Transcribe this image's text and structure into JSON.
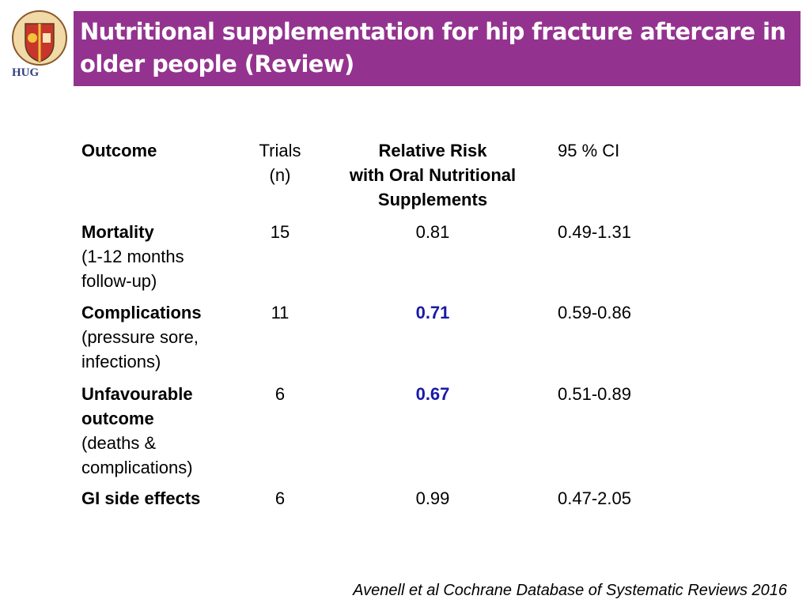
{
  "header": {
    "title": "Nutritional supplementation for hip fracture aftercare in older people (Review)",
    "logo_text": "HUG"
  },
  "table": {
    "columns": [
      [
        "Outcome"
      ],
      [
        "Trials",
        "(n)"
      ],
      [
        "Relative Risk",
        "with Oral Nutritional",
        "Supplements"
      ],
      [
        "95 % CI"
      ]
    ],
    "rows": [
      {
        "outcome": "Mortality",
        "detail": "(1-12 months follow-up)",
        "trials": "15",
        "rr": "0.81",
        "ci": "0.49-1.31",
        "highlight": false
      },
      {
        "outcome": "Complications",
        "detail": "(pressure sore, infections)",
        "trials": "11",
        "rr": "0.71",
        "ci": "0.59-0.86",
        "highlight": true
      },
      {
        "outcome": "Unfavourable outcome",
        "detail": "(deaths & complications)",
        "trials": "6",
        "rr": "0.67",
        "ci": "0.51-0.89",
        "highlight": true
      },
      {
        "outcome": "GI side effects",
        "detail": null,
        "trials": "6",
        "rr": "0.99",
        "ci": "0.47-2.05",
        "highlight": false
      }
    ]
  },
  "footer": {
    "citation": "Avenell et al Cochrane Database of Systematic Reviews 2016"
  }
}
